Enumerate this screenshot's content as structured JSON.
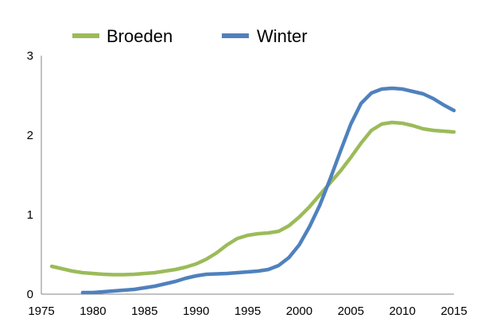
{
  "chart_data": {
    "type": "line",
    "title": "",
    "xlabel": "",
    "ylabel": "",
    "xlim": [
      1975,
      2015
    ],
    "ylim": [
      0,
      3
    ],
    "x_ticks": [
      1975,
      1980,
      1985,
      1990,
      1995,
      2000,
      2005,
      2010,
      2015
    ],
    "y_ticks": [
      0,
      1,
      2,
      3
    ],
    "grid": false,
    "legend_position": "top-left",
    "series": [
      {
        "name": "Broeden",
        "color": "#9bbb59",
        "x": [
          1976,
          1977,
          1978,
          1979,
          1980,
          1981,
          1982,
          1983,
          1984,
          1985,
          1986,
          1987,
          1988,
          1989,
          1990,
          1991,
          1992,
          1993,
          1994,
          1995,
          1996,
          1997,
          1998,
          1999,
          2000,
          2001,
          2002,
          2003,
          2004,
          2005,
          2006,
          2007,
          2008,
          2009,
          2010,
          2011,
          2012,
          2013,
          2014,
          2015
        ],
        "y": [
          0.35,
          0.32,
          0.29,
          0.27,
          0.26,
          0.25,
          0.245,
          0.245,
          0.25,
          0.26,
          0.27,
          0.29,
          0.31,
          0.34,
          0.38,
          0.44,
          0.52,
          0.62,
          0.7,
          0.74,
          0.76,
          0.77,
          0.79,
          0.86,
          0.97,
          1.1,
          1.25,
          1.4,
          1.55,
          1.72,
          1.9,
          2.06,
          2.14,
          2.16,
          2.15,
          2.12,
          2.08,
          2.06,
          2.05,
          2.04
        ]
      },
      {
        "name": "Winter",
        "color": "#4f81bd",
        "x": [
          1979,
          1980,
          1981,
          1982,
          1983,
          1984,
          1985,
          1986,
          1987,
          1988,
          1989,
          1990,
          1991,
          1992,
          1993,
          1994,
          1995,
          1996,
          1997,
          1998,
          1999,
          2000,
          2001,
          2002,
          2003,
          2004,
          2005,
          2006,
          2007,
          2008,
          2009,
          2010,
          2011,
          2012,
          2013,
          2014,
          2015
        ],
        "y": [
          0.02,
          0.02,
          0.03,
          0.04,
          0.05,
          0.06,
          0.08,
          0.1,
          0.13,
          0.16,
          0.2,
          0.23,
          0.25,
          0.255,
          0.26,
          0.27,
          0.28,
          0.29,
          0.31,
          0.36,
          0.46,
          0.62,
          0.85,
          1.12,
          1.45,
          1.8,
          2.14,
          2.4,
          2.53,
          2.58,
          2.59,
          2.58,
          2.55,
          2.52,
          2.46,
          2.38,
          2.31
        ]
      }
    ]
  }
}
